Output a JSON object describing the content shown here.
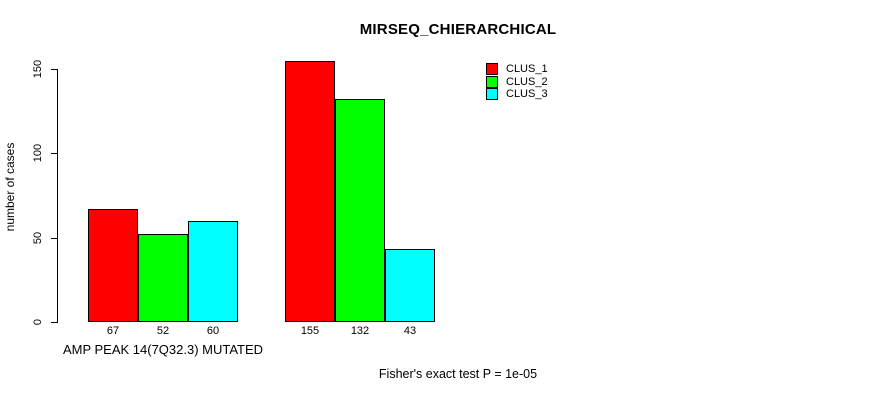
{
  "chart_data": {
    "type": "bar",
    "title": "MIRSEQ_CHIERARCHICAL",
    "ylabel": "number of cases",
    "xlabel": "",
    "categories": [
      "AMP PEAK 14(7Q32.3) MUTATED",
      ""
    ],
    "series": [
      {
        "name": "CLUS_1",
        "color": "#ff0000",
        "values": [
          67,
          155
        ]
      },
      {
        "name": "CLUS_2",
        "color": "#00ff00",
        "values": [
          52,
          132
        ]
      },
      {
        "name": "CLUS_3",
        "color": "#00ffff",
        "values": [
          60,
          43
        ]
      }
    ],
    "bar_value_labels": [
      [
        67,
        52,
        60
      ],
      [
        155,
        132,
        43
      ]
    ],
    "yticks": [
      0,
      50,
      100,
      150
    ],
    "axis_range": [
      0,
      150
    ],
    "ylim": [
      0,
      160
    ],
    "grid": false,
    "legend_position": "top-right",
    "bar_outline_color": "#000000",
    "text_color": "#000000",
    "background_color": "#ffffff",
    "footnote": "Fisher's exact test P = 1e-05"
  }
}
